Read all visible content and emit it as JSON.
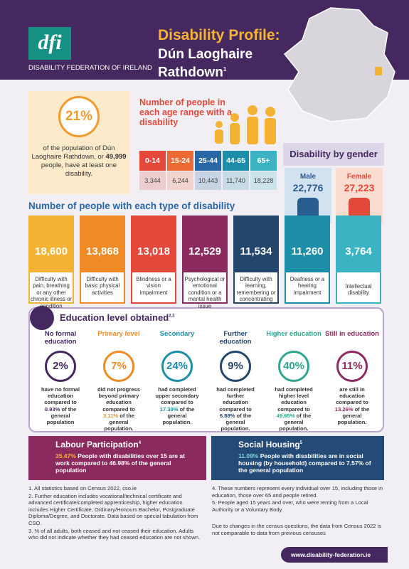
{
  "header": {
    "logo": "dfi",
    "organisation": "DISABILITY FEDERATION OF IRELAND",
    "title": "Disability Profile:",
    "area": "Dún Laoghaire Rathdown",
    "area_note": "1"
  },
  "headline": {
    "percent": "21%",
    "text_before": "of the population of Dún Laoghaire Rathdown, or",
    "count": "49,999",
    "text_after": "people, have at least one disability."
  },
  "age": {
    "title": "Number of people in each age range with a disability",
    "groups": [
      {
        "label": "0-14",
        "value": "3,344"
      },
      {
        "label": "15-24",
        "value": "6,244"
      },
      {
        "label": "25-44",
        "value": "10,443"
      },
      {
        "label": "44-65",
        "value": "11,740"
      },
      {
        "label": "65+",
        "value": "18,228"
      }
    ]
  },
  "gender": {
    "title": "Disability by gender",
    "groups": [
      {
        "label": "Male",
        "value": "22,776"
      },
      {
        "label": "Female",
        "value": "27,223"
      }
    ]
  },
  "types": {
    "title": "Number of people with each type of disability",
    "items": [
      {
        "value": "18,600",
        "label": "Difficulty with pain, breathing or any other chronic illness or condition"
      },
      {
        "value": "13,868",
        "label": "Difficulty with basic physical activities"
      },
      {
        "value": "13,018",
        "label": "Blindness or a vision impairment"
      },
      {
        "value": "12,529",
        "label": "Psychological or emotional condition or a mental health issue"
      },
      {
        "value": "11,534",
        "label": "Difficulty with learning, remembering or concentrating"
      },
      {
        "value": "11,260",
        "label": "Deafness or a hearing impairment"
      },
      {
        "value": "3,764",
        "label": "Intellectual disability"
      }
    ]
  },
  "education": {
    "title": "Education level obtained",
    "title_note": "2,3",
    "items": [
      {
        "heading": "No formal education",
        "value": "2%",
        "before": "have no formal education compared to",
        "highlight": "0.93%",
        "after": "of the general population"
      },
      {
        "heading": "Primary level",
        "value": "7%",
        "before": "did not progress beyond primary education compared to",
        "highlight": "3.11%",
        "after": "of the general population."
      },
      {
        "heading": "Secondary",
        "value": "24%",
        "before": "had completed upper secondary compared to",
        "highlight": "17.30%",
        "after": "of the general population."
      },
      {
        "heading": "Further education",
        "value": "9%",
        "before": "had completed further education compared to",
        "highlight": "6.88%",
        "after": "of the general population."
      },
      {
        "heading": "Higher education",
        "value": "40%",
        "before": "had completed higher level education compared to",
        "highlight": "49.65%",
        "after": "of the general population."
      },
      {
        "heading": "Still in education",
        "value": "11%",
        "before": "are still in education compared to",
        "highlight": "13.26%",
        "after": "of the general population."
      }
    ]
  },
  "labour": {
    "title": "Labour Participation",
    "note": "4",
    "lead": "35.47%",
    "text": "People with disabilities over 15 are at work compared to 46.98% of the general population"
  },
  "housing": {
    "title": "Social Housing",
    "note": "5",
    "lead": "11.09%",
    "text": "People with disabilities are in social housing (by household) compared to 7.57% of the general population"
  },
  "footnotes": {
    "left": [
      "1. All statistics based on Census 2022, cso.ie",
      "2. Further education includes vocational/technical certificate and advanced certificate/completed apprenticeship, higher education includes Higher Certificate, Ordinary/Honours Bachelor, Postgraduate Diploma/Degree, and Doctorate. Data based on special tabulation from CSO.",
      "3. % of all adults, both ceased and not ceased their education. Adults who did not indicate whether they had ceased education are not shown."
    ],
    "right": [
      "4. These numbers represent every individual over 15, including those in education, those over 65 and people retired.",
      "5. People aged 15 years and over, who were renting from a Local Authority or a Voluntary Body."
    ],
    "disclaimer": "Due to changes in the census questions, the data from Census 2022 is not comparable to data from previous censuses"
  },
  "website": "www.disability-federation.ie"
}
